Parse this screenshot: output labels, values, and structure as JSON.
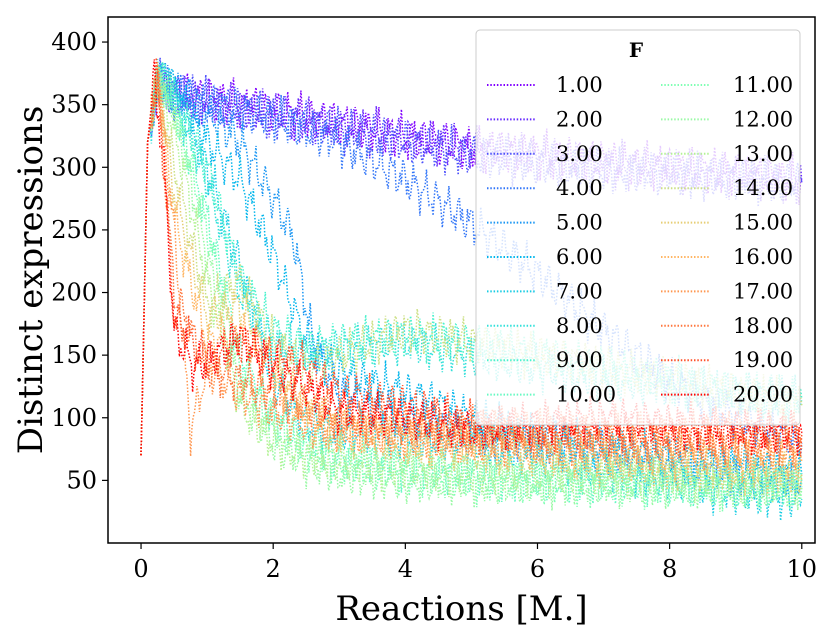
{
  "chart_data": {
    "type": "line",
    "title": "",
    "xlabel": "Reactions [M.]",
    "ylabel": "Distinct expressions",
    "xlim": [
      -0.5,
      10.2
    ],
    "ylim": [
      0,
      420
    ],
    "xticks": [
      0,
      2,
      4,
      6,
      8,
      10
    ],
    "xtick_labels": [
      "0",
      "2",
      "4",
      "6",
      "8",
      "10"
    ],
    "yticks": [
      50,
      100,
      150,
      200,
      250,
      300,
      350,
      400
    ],
    "ytick_labels": [
      "50",
      "100",
      "150",
      "200",
      "250",
      "300",
      "350",
      "400"
    ],
    "line_style": "dotted",
    "colormap": "rainbow",
    "grid": false,
    "legend": {
      "title": "F",
      "placement": "top-right",
      "columns": 2
    },
    "series": [
      {
        "name": "1.00",
        "color": "#8000ff",
        "x": [
          0,
          0.1,
          0.25,
          0.5,
          1,
          2,
          3,
          4,
          5,
          6,
          7,
          8,
          9,
          10
        ],
        "y": [
          70,
          320,
          365,
          360,
          355,
          345,
          335,
          325,
          315,
          310,
          305,
          300,
          295,
          290
        ]
      },
      {
        "name": "2.00",
        "color": "#6629fe",
        "x": [
          0,
          0.1,
          0.25,
          0.5,
          1,
          2,
          3,
          4,
          5,
          6,
          7,
          8,
          9,
          10
        ],
        "y": [
          70,
          320,
          365,
          358,
          352,
          343,
          333,
          323,
          315,
          308,
          302,
          298,
          293,
          288
        ]
      },
      {
        "name": "3.00",
        "color": "#4c50fc",
        "x": [
          0,
          0.1,
          0.25,
          0.5,
          1,
          2,
          3,
          4,
          5,
          6,
          7,
          8,
          9,
          10
        ],
        "y": [
          70,
          320,
          368,
          360,
          353,
          340,
          330,
          320,
          310,
          302,
          298,
          294,
          290,
          288
        ]
      },
      {
        "name": "4.00",
        "color": "#3276f8",
        "x": [
          0,
          0.1,
          0.25,
          0.5,
          1,
          2,
          3,
          4,
          5,
          6,
          7,
          8,
          9,
          10
        ],
        "y": [
          70,
          320,
          368,
          358,
          350,
          340,
          320,
          290,
          255,
          215,
          170,
          130,
          100,
          80
        ]
      },
      {
        "name": "5.00",
        "color": "#1996f3",
        "x": [
          0,
          0.1,
          0.25,
          0.5,
          1,
          1.5,
          2,
          2.3,
          2.6,
          3,
          4,
          5,
          6,
          7,
          8,
          9,
          10
        ],
        "y": [
          70,
          320,
          370,
          362,
          345,
          320,
          275,
          245,
          160,
          120,
          100,
          88,
          80,
          72,
          62,
          55,
          50
        ]
      },
      {
        "name": "6.00",
        "color": "#00b5eb",
        "x": [
          0,
          0.1,
          0.25,
          0.5,
          1,
          1.5,
          2,
          2.5,
          3,
          4,
          5,
          6,
          7,
          8,
          9,
          10
        ],
        "y": [
          70,
          320,
          372,
          365,
          320,
          290,
          230,
          160,
          135,
          120,
          100,
          85,
          80,
          70,
          62,
          55
        ]
      },
      {
        "name": "7.00",
        "color": "#19cde3",
        "x": [
          0,
          0.1,
          0.25,
          0.5,
          1,
          1.5,
          2,
          2.5,
          3,
          4,
          5,
          6,
          7,
          8,
          9,
          10
        ],
        "y": [
          70,
          320,
          372,
          360,
          300,
          220,
          130,
          95,
          90,
          85,
          80,
          70,
          60,
          50,
          40,
          35
        ]
      },
      {
        "name": "8.00",
        "color": "#32e0da",
        "x": [
          0,
          0.1,
          0.25,
          0.5,
          1,
          1.5,
          2,
          2.5,
          3,
          4,
          5,
          6,
          7,
          8,
          9,
          10
        ],
        "y": [
          70,
          320,
          372,
          355,
          290,
          200,
          160,
          150,
          155,
          160,
          150,
          140,
          130,
          125,
          120,
          115
        ]
      },
      {
        "name": "9.00",
        "color": "#4cf2ce",
        "x": [
          0,
          0.1,
          0.25,
          0.5,
          1,
          1.5,
          2,
          2.5,
          3,
          4,
          5,
          6,
          7,
          8,
          9,
          10
        ],
        "y": [
          70,
          320,
          372,
          355,
          300,
          210,
          170,
          155,
          160,
          165,
          160,
          150,
          140,
          130,
          120,
          115
        ]
      },
      {
        "name": "10.00",
        "color": "#66f9c2",
        "x": [
          0,
          0.1,
          0.25,
          0.5,
          1,
          1.5,
          2,
          2.5,
          3,
          4,
          5,
          6,
          7,
          8,
          9,
          10
        ],
        "y": [
          70,
          320,
          372,
          350,
          260,
          150,
          100,
          80,
          70,
          60,
          55,
          50,
          50,
          48,
          45,
          45
        ]
      },
      {
        "name": "11.00",
        "color": "#80ffb4",
        "x": [
          0,
          0.1,
          0.25,
          0.5,
          1,
          1.5,
          2,
          2.5,
          3,
          4,
          5,
          6,
          7,
          8,
          9,
          10
        ],
        "y": [
          70,
          320,
          372,
          350,
          250,
          140,
          95,
          75,
          65,
          55,
          50,
          48,
          47,
          46,
          45,
          45
        ]
      },
      {
        "name": "12.00",
        "color": "#99f9a5",
        "x": [
          0,
          0.1,
          0.25,
          0.5,
          1,
          1.5,
          2,
          2.5,
          3,
          4,
          5,
          6,
          7,
          8,
          9,
          10
        ],
        "y": [
          70,
          320,
          372,
          345,
          230,
          120,
          80,
          65,
          55,
          50,
          48,
          47,
          47,
          46,
          45,
          45
        ]
      },
      {
        "name": "13.00",
        "color": "#b3f295",
        "x": [
          0,
          0.1,
          0.25,
          0.5,
          1,
          1.5,
          2,
          2.5,
          3,
          4,
          5,
          6,
          7,
          8,
          9,
          10
        ],
        "y": [
          70,
          320,
          372,
          330,
          210,
          110,
          80,
          70,
          65,
          60,
          55,
          55,
          55,
          55,
          50,
          50
        ]
      },
      {
        "name": "14.00",
        "color": "#cce085",
        "x": [
          0,
          0.1,
          0.25,
          0.5,
          1,
          1.5,
          2,
          2.5,
          3,
          4,
          5,
          6,
          7,
          8,
          9,
          10
        ],
        "y": [
          70,
          320,
          372,
          300,
          190,
          210,
          160,
          140,
          150,
          170,
          160,
          150,
          140,
          130,
          120,
          110
        ]
      },
      {
        "name": "15.00",
        "color": "#e6cd73",
        "x": [
          0,
          0.1,
          0.25,
          0.5,
          1,
          1.5,
          2,
          2.5,
          3,
          4,
          5,
          6,
          7,
          8,
          9,
          10
        ],
        "y": [
          70,
          320,
          372,
          280,
          180,
          190,
          140,
          110,
          90,
          80,
          75,
          70,
          65,
          60,
          58,
          55
        ]
      },
      {
        "name": "16.00",
        "color": "#ffb562",
        "x": [
          0,
          0.1,
          0.25,
          0.5,
          1,
          1.5,
          2,
          2.5,
          3,
          4,
          5,
          6,
          7,
          8,
          9,
          10
        ],
        "y": [
          70,
          320,
          372,
          260,
          160,
          170,
          130,
          100,
          90,
          85,
          80,
          75,
          70,
          70,
          68,
          65
        ]
      },
      {
        "name": "17.00",
        "color": "#ff964f",
        "x": [
          0,
          0.1,
          0.25,
          0.5,
          0.75,
          1,
          1.5,
          2,
          2.5,
          3,
          4,
          5,
          6,
          7,
          8,
          9,
          10
        ],
        "y": [
          70,
          320,
          372,
          250,
          90,
          140,
          120,
          105,
          95,
          90,
          85,
          82,
          80,
          80,
          78,
          75,
          75
        ]
      },
      {
        "name": "18.00",
        "color": "#ff763c",
        "x": [
          0,
          0.1,
          0.25,
          0.5,
          1,
          1.5,
          2,
          2.5,
          3,
          4,
          5,
          6,
          7,
          8,
          9,
          10
        ],
        "y": [
          70,
          320,
          372,
          200,
          140,
          130,
          120,
          110,
          100,
          95,
          90,
          88,
          85,
          85,
          82,
          80
        ]
      },
      {
        "name": "19.00",
        "color": "#ff5028",
        "x": [
          0,
          0.1,
          0.25,
          0.5,
          1,
          1.5,
          2,
          2.5,
          3,
          4,
          5,
          6,
          7,
          8,
          9,
          10
        ],
        "y": [
          70,
          320,
          372,
          180,
          145,
          160,
          150,
          140,
          120,
          110,
          95,
          90,
          90,
          88,
          90,
          88
        ]
      },
      {
        "name": "20.00",
        "color": "#ff0000",
        "x": [
          0,
          0.1,
          0.2,
          0.35,
          0.5,
          0.8,
          1,
          1.5,
          2,
          2.5,
          3,
          4,
          5,
          6,
          7,
          8,
          9,
          10
        ],
        "y": [
          70,
          320,
          372,
          300,
          170,
          140,
          145,
          165,
          140,
          125,
          105,
          100,
          90,
          95,
          100,
          95,
          90,
          88
        ]
      }
    ]
  }
}
